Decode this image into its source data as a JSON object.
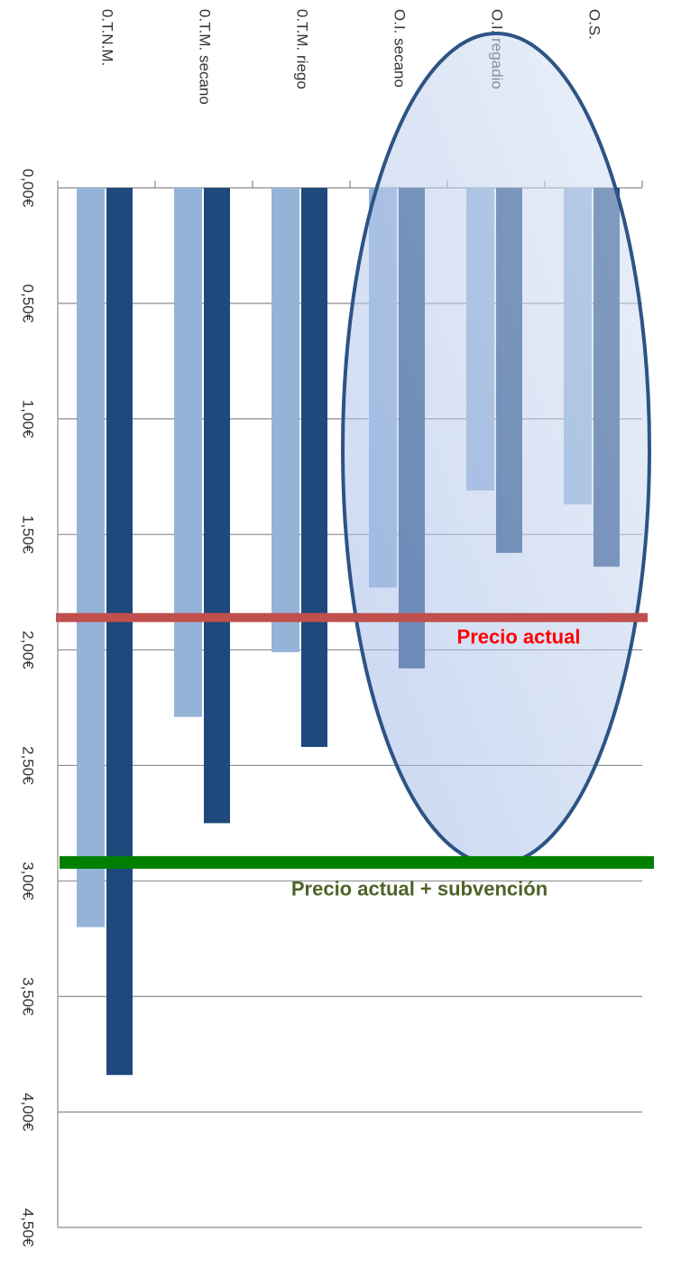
{
  "chart_data": {
    "type": "bar",
    "categories": [
      "0.T.N.M.",
      "0.T.M. secano",
      "0.T.M. riego",
      "O.I. secano",
      "O.I. regadio",
      "O.S."
    ],
    "series": [
      {
        "color": "#95b3d7",
        "values": [
          3.2,
          2.29,
          2.01,
          1.73,
          1.31,
          1.37
        ]
      },
      {
        "color": "#1f497d",
        "values": [
          3.84,
          2.75,
          2.42,
          2.08,
          1.58,
          1.64
        ]
      }
    ],
    "ylim": [
      0,
      4.5
    ],
    "y_inverted": true,
    "yticks": [
      {
        "value": 0,
        "label": "0,00€"
      },
      {
        "value": 0.5,
        "label": "0,50€"
      },
      {
        "value": 1,
        "label": "1,00€"
      },
      {
        "value": 1.5,
        "label": "1,50€"
      },
      {
        "value": 2,
        "label": "2,00€"
      },
      {
        "value": 2.5,
        "label": "2,50€"
      },
      {
        "value": 3,
        "label": "3,00€"
      },
      {
        "value": 3.5,
        "label": "3,50€"
      },
      {
        "value": 4,
        "label": "4,00€"
      },
      {
        "value": 4.5,
        "label": "4,50€"
      }
    ],
    "grid": true,
    "reference_lines": [
      {
        "value": 1.86,
        "label": "Precio actual",
        "color": "#c0504d",
        "label_color": "#ff0000"
      },
      {
        "value": 2.92,
        "label": "Precio actual + subvención",
        "color": "#008000",
        "label_color": "#4f6228"
      }
    ]
  }
}
